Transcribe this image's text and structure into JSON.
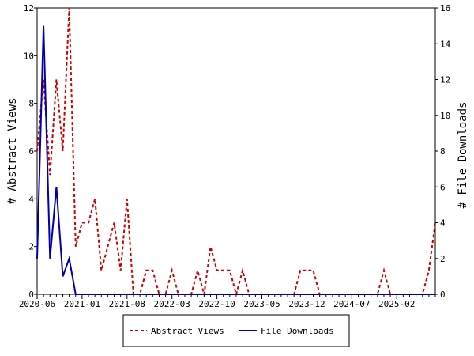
{
  "chart_data": {
    "type": "line",
    "categories": [
      "2020-06",
      null,
      null,
      null,
      null,
      null,
      null,
      "2021-01",
      null,
      null,
      null,
      null,
      null,
      null,
      "2021-08",
      null,
      null,
      null,
      null,
      null,
      null,
      "2022-03",
      null,
      null,
      null,
      null,
      null,
      null,
      "2022-10",
      null,
      null,
      null,
      null,
      null,
      null,
      "2023-05",
      null,
      null,
      null,
      null,
      null,
      null,
      "2023-12",
      null,
      null,
      null,
      null,
      null,
      null,
      "2024-07",
      null,
      null,
      null,
      null,
      null,
      null,
      "2025-02",
      null,
      null,
      null,
      null,
      null,
      null
    ],
    "y_label": "# Abstract Views",
    "y2_label": "# File Downloads",
    "ylim": [
      0,
      12
    ],
    "yticks": [
      0,
      2,
      4,
      6,
      8,
      10,
      12
    ],
    "y2lim": [
      0,
      16
    ],
    "y2ticks": [
      0,
      2,
      4,
      6,
      8,
      10,
      12,
      14,
      16
    ],
    "series": [
      {
        "name": "Abstract Views",
        "color": "#cc0000",
        "dashed": true,
        "values": [
          6,
          9,
          5,
          9,
          6,
          12,
          2,
          3,
          3,
          4,
          1,
          2,
          3,
          1,
          4,
          0,
          0,
          1,
          1,
          0,
          0,
          1,
          0,
          0,
          0,
          1,
          0,
          2,
          1,
          1,
          1,
          0,
          1,
          0,
          0,
          0,
          0,
          0,
          0,
          0,
          0,
          1,
          1,
          1,
          0,
          0,
          0,
          0,
          0,
          0,
          0,
          0,
          0,
          0,
          1,
          0,
          0,
          0,
          0,
          0,
          0,
          1,
          3
        ]
      },
      {
        "name": "File Downloads",
        "color": "#0000aa",
        "dashed": false,
        "axis": "y2",
        "values": [
          2,
          15,
          2,
          6,
          1,
          2,
          0,
          0,
          0,
          0,
          0,
          0,
          0,
          0,
          0,
          0,
          0,
          0,
          0,
          0,
          0,
          0,
          0,
          0,
          0,
          0,
          0,
          0,
          0,
          0,
          0,
          0,
          0,
          0,
          0,
          0,
          0,
          0,
          0,
          0,
          0,
          0,
          0,
          0,
          0,
          0,
          0,
          0,
          0,
          0,
          0,
          0,
          0,
          0,
          0,
          0,
          0,
          0,
          0,
          0,
          0,
          0,
          0
        ]
      }
    ]
  }
}
